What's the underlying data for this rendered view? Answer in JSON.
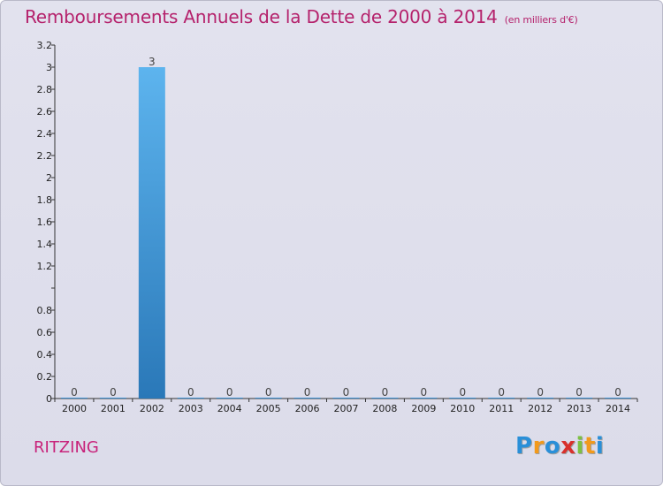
{
  "chart_data": {
    "type": "bar",
    "title": "Remboursements Annuels de la Dette de 2000 à 2014",
    "subtitle": "(en milliers d'€)",
    "categories": [
      "2000",
      "2001",
      "2002",
      "2003",
      "2004",
      "2005",
      "2006",
      "2007",
      "2008",
      "2009",
      "2010",
      "2011",
      "2012",
      "2013",
      "2014"
    ],
    "values": [
      0,
      0,
      3,
      0,
      0,
      0,
      0,
      0,
      0,
      0,
      0,
      0,
      0,
      0,
      0
    ],
    "data_labels": [
      "0",
      "0",
      "3",
      "0",
      "0",
      "0",
      "0",
      "0",
      "0",
      "0",
      "0",
      "0",
      "0",
      "0",
      "0"
    ],
    "ylim": [
      0,
      3.2
    ],
    "yticks": [
      0,
      0.2,
      0.4,
      0.6,
      0.8,
      1,
      1.2,
      1.4,
      1.6,
      1.8,
      2,
      2.2,
      2.4,
      2.6,
      2.8,
      3,
      3.2
    ],
    "ytick_labels": [
      "0",
      "0.2",
      "0.4",
      "0.6",
      "0.8",
      "",
      "1.2",
      "1.4",
      "1.6",
      "1.8",
      "2",
      "2.2",
      "2.4",
      "2.6",
      "2.8",
      "3",
      "3.2"
    ],
    "xlabel": "",
    "ylabel": "",
    "grid": false,
    "bar_color": "#4a9fe0"
  },
  "footer": {
    "place": "RITZING",
    "logo_letters": [
      "P",
      "r",
      "o",
      "x",
      "i",
      "t",
      "i"
    ],
    "logo_colors": [
      "#2a8fd8",
      "#f29a1c",
      "#2a8fd8",
      "#d8302c",
      "#7cc142",
      "#f29a1c",
      "#2a8fd8"
    ]
  }
}
